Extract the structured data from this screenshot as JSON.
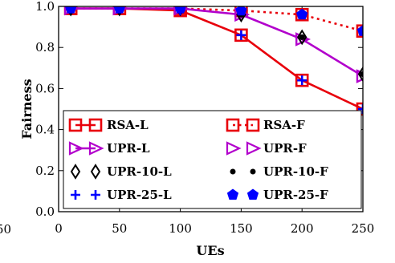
{
  "chart_data": {
    "type": "line",
    "xlabel": "UEs",
    "ylabel": "Fairness",
    "xlim": [
      0,
      250
    ],
    "ylim": [
      0.0,
      1.0
    ],
    "x_ticks": [
      "0",
      "50",
      "100",
      "150",
      "200",
      "250"
    ],
    "y_ticks": [
      "0.0",
      "0.2",
      "0.4",
      "0.6",
      "0.8",
      "1.0"
    ],
    "left_edge_fragment": "50",
    "grid": false,
    "legend_position": "lower-left",
    "x": [
      10,
      50,
      100,
      150,
      200,
      250
    ],
    "series": [
      {
        "name": "RSA-L",
        "values": [
          0.99,
          0.99,
          0.98,
          0.86,
          0.64,
          0.5
        ],
        "color": "#e8000b",
        "line": "solid",
        "marker": "square-open"
      },
      {
        "name": "RSA-F",
        "values": [
          0.99,
          0.99,
          0.99,
          0.98,
          0.96,
          0.88
        ],
        "color": "#e8000b",
        "line": "dotted",
        "marker": "square-open"
      },
      {
        "name": "UPR-L",
        "values": [
          0.99,
          0.99,
          0.99,
          0.96,
          0.84,
          0.66
        ],
        "color": "#b200cc",
        "line": "solid",
        "marker": "triangle-right-open"
      },
      {
        "name": "UPR-F",
        "values": [
          0.99,
          0.99,
          0.99,
          0.96,
          0.84,
          0.66
        ],
        "color": "#b200cc",
        "line": "none",
        "marker": "triangle-right-open"
      },
      {
        "name": "UPR-10-L",
        "values": [
          0.99,
          0.99,
          0.99,
          0.96,
          0.85,
          0.67
        ],
        "color": "#000000",
        "line": "none",
        "marker": "diamond-open"
      },
      {
        "name": "UPR-10-F",
        "values": [
          0.99,
          0.99,
          0.99,
          0.96,
          0.85,
          0.67
        ],
        "color": "#000000",
        "line": "none",
        "marker": "circle-filled"
      },
      {
        "name": "UPR-25-L",
        "values": [
          0.99,
          0.99,
          0.98,
          0.86,
          0.64,
          0.5
        ],
        "color": "#0000ff",
        "line": "none",
        "marker": "plus"
      },
      {
        "name": "UPR-25-F",
        "values": [
          0.99,
          0.99,
          0.99,
          0.98,
          0.96,
          0.88
        ],
        "color": "#0000ff",
        "line": "none",
        "marker": "pentagon-filled"
      }
    ],
    "legend": {
      "left": [
        "RSA-L",
        "UPR-L",
        "UPR-10-L",
        "UPR-25-L"
      ],
      "right": [
        "RSA-F",
        "UPR-F",
        "UPR-10-F",
        "UPR-25-F"
      ]
    }
  }
}
